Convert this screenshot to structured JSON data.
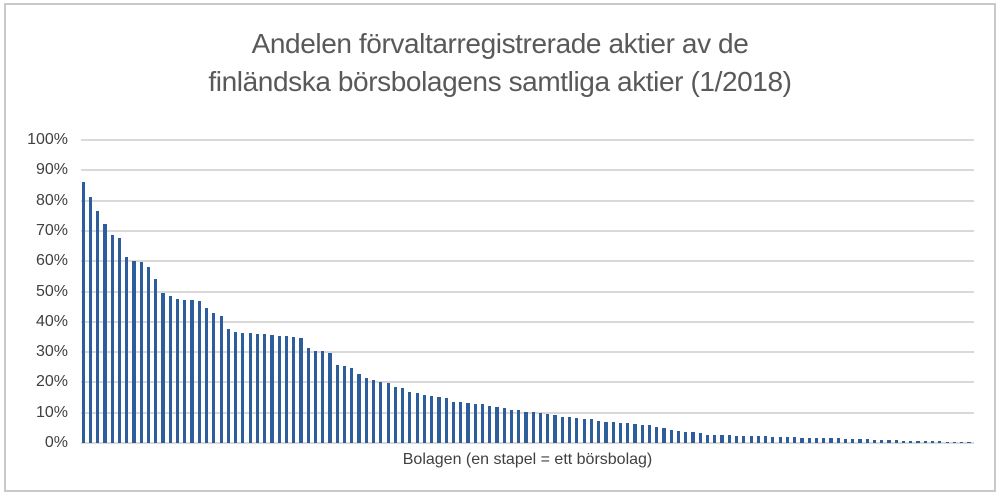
{
  "title": {
    "line1": "Andelen förvaltarregistrerade aktier av de",
    "line2": "finländska börsbolagens samtliga aktier (1/2018)"
  },
  "colors": {
    "bar": "#2E5D9B",
    "gridline": "#D9D9D9",
    "title_text": "#595959",
    "axis_text": "#404040",
    "frame_border": "#C9C9C9"
  },
  "chart_data": {
    "type": "bar",
    "title": "Andelen förvaltarregistrerade aktier av de finländska börsbolagens samtliga aktier (1/2018)",
    "xlabel": "Bolagen (en stapel = ett börsbolag)",
    "ylabel": "",
    "ylim": [
      0,
      100
    ],
    "grid": true,
    "legend": "none",
    "y_ticks": [
      "100%",
      "90%",
      "80%",
      "70%",
      "60%",
      "50%",
      "40%",
      "30%",
      "20%",
      "10%",
      "0%"
    ],
    "unit": "percent",
    "bar_count": 123,
    "values": [
      86.3,
      81.2,
      76.5,
      72.4,
      68.5,
      67.8,
      61.3,
      60.1,
      59.6,
      58.2,
      54.2,
      49.6,
      48.4,
      47.4,
      47.2,
      47.2,
      47.0,
      44.7,
      43.0,
      42.0,
      37.6,
      36.7,
      36.4,
      36.4,
      36.0,
      36.0,
      35.6,
      35.3,
      35.3,
      34.9,
      34.6,
      31.2,
      30.5,
      30.4,
      29.6,
      25.7,
      25.5,
      24.7,
      22.7,
      21.4,
      20.8,
      20.0,
      19.7,
      18.5,
      18.2,
      17.0,
      16.5,
      16.0,
      15.5,
      15.2,
      14.7,
      13.6,
      13.4,
      13.2,
      13.0,
      12.8,
      12.1,
      12.0,
      11.5,
      11.0,
      10.8,
      10.4,
      10.1,
      9.9,
      9.6,
      9.3,
      8.7,
      8.5,
      8.2,
      8.0,
      7.9,
      7.4,
      7.0,
      6.8,
      6.7,
      6.5,
      6.3,
      6.1,
      5.9,
      5.4,
      4.8,
      4.3,
      4.1,
      3.7,
      3.5,
      3.2,
      2.8,
      2.6,
      2.6,
      2.5,
      2.4,
      2.4,
      2.3,
      2.3,
      2.2,
      2.1,
      2.1,
      2.0,
      1.9,
      1.8,
      1.8,
      1.7,
      1.6,
      1.5,
      1.5,
      1.4,
      1.3,
      1.3,
      1.2,
      1.1,
      1.0,
      0.9,
      0.9,
      0.8,
      0.8,
      0.7,
      0.7,
      0.6,
      0.6,
      0.5,
      0.5,
      0.4,
      0.4
    ]
  }
}
